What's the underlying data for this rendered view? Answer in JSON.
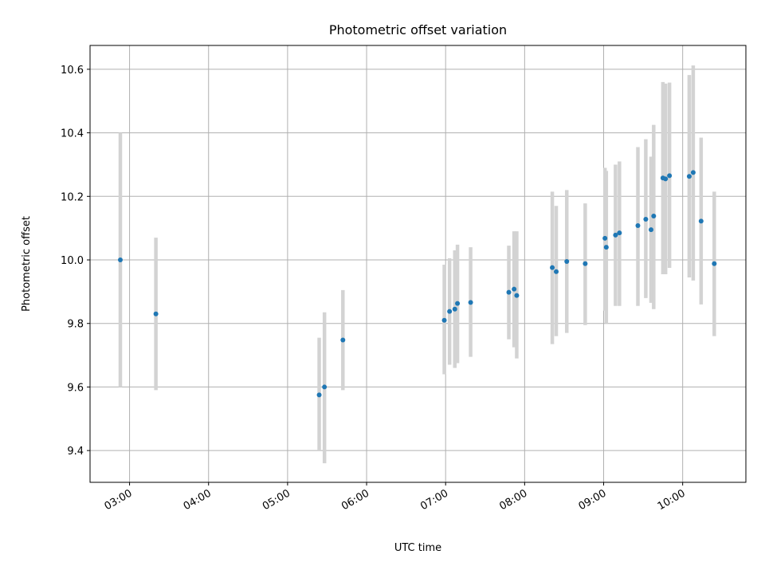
{
  "chart_data": {
    "type": "scatter",
    "title": "Photometric offset variation",
    "xlabel": "UTC time",
    "ylabel": "Photometric offset",
    "xlim": [
      "02:30",
      "10:48"
    ],
    "ylim": [
      9.3,
      10.675
    ],
    "xticks": [
      "03:00",
      "04:00",
      "05:00",
      "06:00",
      "07:00",
      "08:00",
      "09:00",
      "10:00"
    ],
    "yticks": [
      "9.4",
      "9.6",
      "9.8",
      "10.0",
      "10.2",
      "10.4",
      "10.6"
    ],
    "grid": true,
    "colors": {
      "point": "#1f77b4",
      "errorbar": "#d3d3d3",
      "grid": "#b0b0b0"
    },
    "points": [
      {
        "t": "02:53",
        "y": 10.0,
        "lo": 9.6,
        "hi": 10.4
      },
      {
        "t": "03:20",
        "y": 9.83,
        "lo": 9.59,
        "hi": 10.07
      },
      {
        "t": "05:24",
        "y": 9.575,
        "lo": 9.4,
        "hi": 9.755
      },
      {
        "t": "05:28",
        "y": 9.6,
        "lo": 9.36,
        "hi": 9.835
      },
      {
        "t": "05:42",
        "y": 9.748,
        "lo": 9.59,
        "hi": 9.905
      },
      {
        "t": "06:59",
        "y": 9.81,
        "lo": 9.64,
        "hi": 9.985
      },
      {
        "t": "07:03",
        "y": 9.838,
        "lo": 9.67,
        "hi": 10.005
      },
      {
        "t": "07:07",
        "y": 9.845,
        "lo": 9.66,
        "hi": 10.03
      },
      {
        "t": "07:09",
        "y": 9.863,
        "lo": 9.675,
        "hi": 10.048
      },
      {
        "t": "07:19",
        "y": 9.866,
        "lo": 9.695,
        "hi": 10.04
      },
      {
        "t": "07:48",
        "y": 9.898,
        "lo": 9.75,
        "hi": 10.045
      },
      {
        "t": "07:52",
        "y": 9.908,
        "lo": 9.725,
        "hi": 10.09
      },
      {
        "t": "07:54",
        "y": 9.888,
        "lo": 9.69,
        "hi": 10.09
      },
      {
        "t": "08:21",
        "y": 9.976,
        "lo": 9.735,
        "hi": 10.215
      },
      {
        "t": "08:24",
        "y": 9.963,
        "lo": 9.76,
        "hi": 10.17
      },
      {
        "t": "08:32",
        "y": 9.995,
        "lo": 9.77,
        "hi": 10.22
      },
      {
        "t": "08:46",
        "y": 9.988,
        "lo": 9.795,
        "hi": 10.178
      },
      {
        "t": "09:01",
        "y": 10.068,
        "lo": 9.84,
        "hi": 10.29
      },
      {
        "t": "09:02",
        "y": 10.04,
        "lo": 9.8,
        "hi": 10.28
      },
      {
        "t": "09:09",
        "y": 10.078,
        "lo": 9.855,
        "hi": 10.3
      },
      {
        "t": "09:12",
        "y": 10.085,
        "lo": 9.855,
        "hi": 10.31
      },
      {
        "t": "09:26",
        "y": 10.108,
        "lo": 9.855,
        "hi": 10.355
      },
      {
        "t": "09:32",
        "y": 10.128,
        "lo": 9.88,
        "hi": 10.38
      },
      {
        "t": "09:36",
        "y": 10.095,
        "lo": 9.865,
        "hi": 10.325
      },
      {
        "t": "09:38",
        "y": 10.138,
        "lo": 9.845,
        "hi": 10.425
      },
      {
        "t": "09:45",
        "y": 10.258,
        "lo": 9.955,
        "hi": 10.56
      },
      {
        "t": "09:47",
        "y": 10.255,
        "lo": 9.955,
        "hi": 10.555
      },
      {
        "t": "09:50",
        "y": 10.265,
        "lo": 9.975,
        "hi": 10.558
      },
      {
        "t": "10:05",
        "y": 10.263,
        "lo": 9.945,
        "hi": 10.582
      },
      {
        "t": "10:08",
        "y": 10.275,
        "lo": 9.935,
        "hi": 10.612
      },
      {
        "t": "10:14",
        "y": 10.122,
        "lo": 9.86,
        "hi": 10.385
      },
      {
        "t": "10:24",
        "y": 9.988,
        "lo": 9.76,
        "hi": 10.215
      }
    ]
  }
}
